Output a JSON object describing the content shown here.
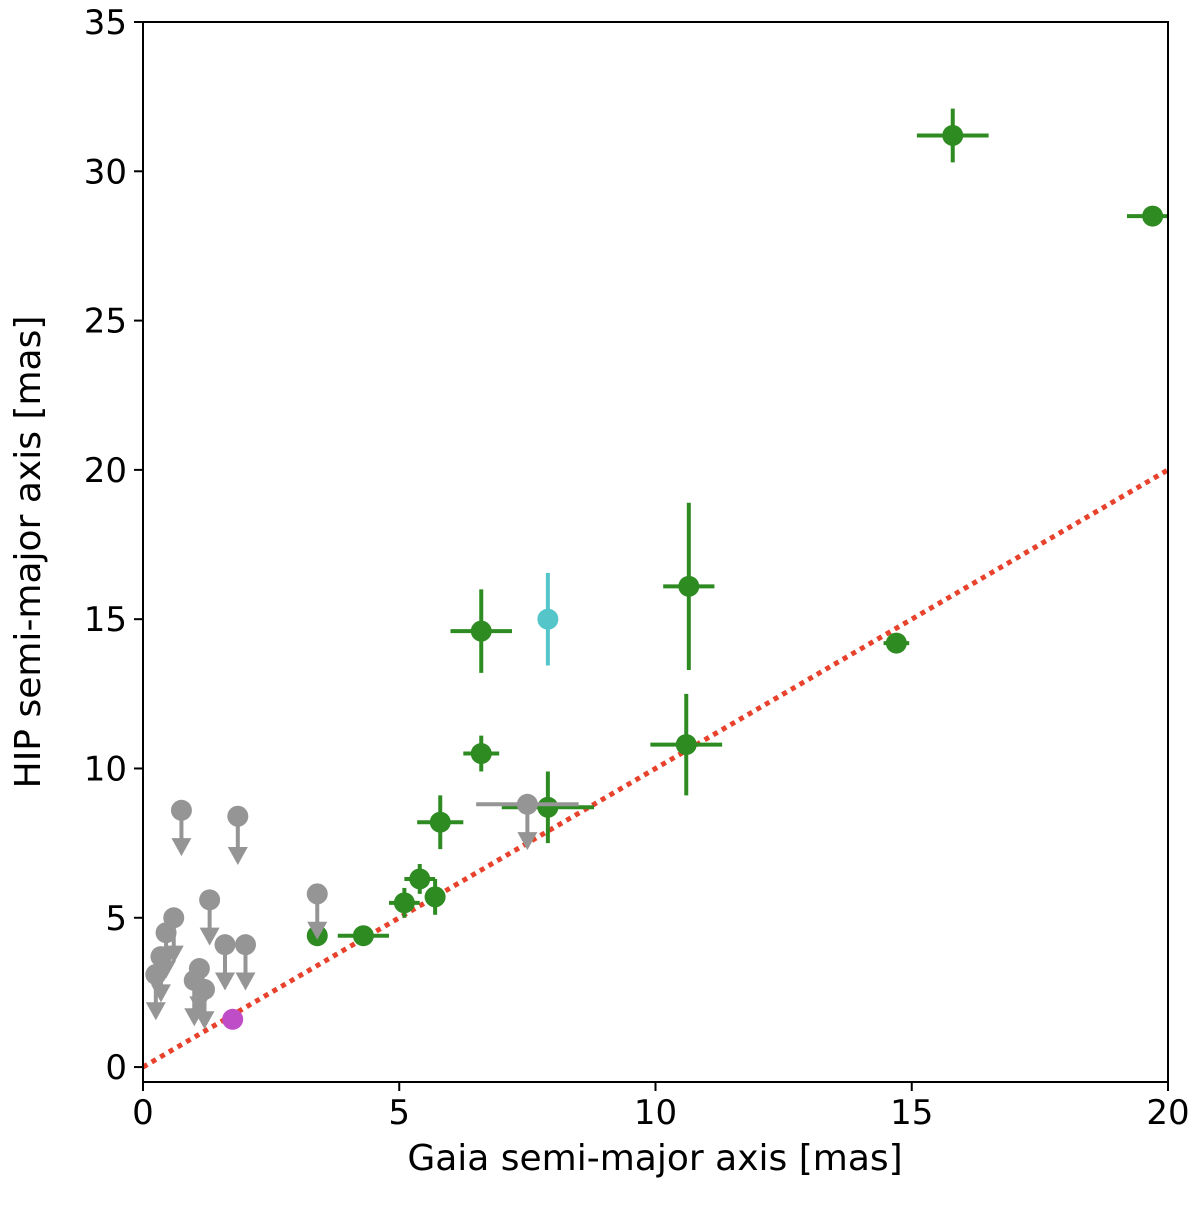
{
  "chart_data": {
    "type": "scatter",
    "title": "",
    "xlabel": "Gaia semi-major axis [mas]",
    "ylabel": "HIP semi-major axis [mas]",
    "xlim": [
      0,
      20
    ],
    "ylim": [
      -0.5,
      35
    ],
    "xticks": [
      0,
      5,
      10,
      15,
      20
    ],
    "yticks": [
      0,
      5,
      10,
      15,
      20,
      25,
      30,
      35
    ],
    "grid": false,
    "reference_line": {
      "slope": 1,
      "intercept": 0,
      "style": "dotted",
      "color": "#e8412c"
    },
    "colors": {
      "detected": "#2e8b22",
      "upper_limit": "#959595",
      "cyan": "#54c6c9",
      "magenta": "#c04dc8"
    },
    "series": [
      {
        "color_key": "detected",
        "points": [
          {
            "x": 15.8,
            "y": 31.2,
            "xerr": 0.7,
            "yerr": 0.9
          },
          {
            "x": 19.7,
            "y": 28.5,
            "xerr": 0.5,
            "yerr": 0
          },
          {
            "x": 6.6,
            "y": 14.6,
            "xerr": 0.6,
            "yerr": 1.4
          },
          {
            "x": 10.65,
            "y": 16.1,
            "xerr": 0.5,
            "yerr": 2.8
          },
          {
            "x": 14.7,
            "y": 14.2,
            "xerr": 0.25,
            "yerr": 0
          },
          {
            "x": 10.6,
            "y": 10.8,
            "xerr": 0.7,
            "yerr": 1.7
          },
          {
            "x": 6.6,
            "y": 10.5,
            "xerr": 0.35,
            "yerr": 0.6
          },
          {
            "x": 7.9,
            "y": 8.7,
            "xerr": 0.9,
            "yerr": 1.2
          },
          {
            "x": 5.8,
            "y": 8.2,
            "xerr": 0.45,
            "yerr": 0.9
          },
          {
            "x": 5.4,
            "y": 6.3,
            "xerr": 0.3,
            "yerr": 0.5
          },
          {
            "x": 5.7,
            "y": 5.7,
            "xerr": 0.2,
            "yerr": 0.6
          },
          {
            "x": 5.1,
            "y": 5.5,
            "xerr": 0.3,
            "yerr": 0.5
          },
          {
            "x": 4.3,
            "y": 4.4,
            "xerr": 0.5,
            "yerr": 0
          },
          {
            "x": 3.4,
            "y": 4.4,
            "xerr": 0,
            "yerr": 0
          }
        ]
      },
      {
        "color_key": "upper_limit",
        "marker": "upper-limit",
        "points": [
          {
            "x": 0.75,
            "y": 8.6,
            "arrow_to": 7.2
          },
          {
            "x": 1.85,
            "y": 8.4,
            "arrow_to": 6.9
          },
          {
            "x": 7.5,
            "y": 8.8,
            "arrow_to": 7.4,
            "xerr": 1.0
          },
          {
            "x": 3.4,
            "y": 5.8,
            "arrow_to": 4.4
          },
          {
            "x": 1.3,
            "y": 5.6,
            "arrow_to": 4.2
          },
          {
            "x": 0.6,
            "y": 5.0,
            "arrow_to": 3.6
          },
          {
            "x": 0.45,
            "y": 4.5,
            "arrow_to": 3.1
          },
          {
            "x": 1.6,
            "y": 4.1,
            "arrow_to": 2.7
          },
          {
            "x": 2.0,
            "y": 4.1,
            "arrow_to": 2.7
          },
          {
            "x": 0.35,
            "y": 3.7,
            "arrow_to": 2.3
          },
          {
            "x": 0.25,
            "y": 3.1,
            "arrow_to": 1.7
          },
          {
            "x": 1.1,
            "y": 3.3,
            "arrow_to": 1.9
          },
          {
            "x": 1.0,
            "y": 2.9,
            "arrow_to": 1.5
          },
          {
            "x": 1.2,
            "y": 2.6,
            "arrow_to": 1.4
          }
        ]
      },
      {
        "color_key": "cyan",
        "points": [
          {
            "x": 7.9,
            "y": 15.0,
            "xerr": 0,
            "yerr": 1.55
          }
        ]
      },
      {
        "color_key": "magenta",
        "points": [
          {
            "x": 1.75,
            "y": 1.6,
            "xerr": 0,
            "yerr": 0
          }
        ]
      }
    ]
  }
}
